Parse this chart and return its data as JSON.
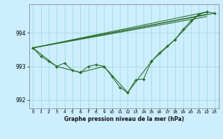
{
  "background_color": "#cceeff",
  "grid_color": "#aadddd",
  "line_color": "#2d6e2d",
  "marker_color": "#2d6e2d",
  "xlabel": "Graphe pression niveau de la mer (hPa)",
  "ylim": [
    991.75,
    994.85
  ],
  "xlim": [
    -0.5,
    23.5
  ],
  "yticks": [
    992,
    993,
    994
  ],
  "xticks": [
    0,
    1,
    2,
    3,
    4,
    5,
    6,
    7,
    8,
    9,
    10,
    11,
    12,
    13,
    14,
    15,
    16,
    17,
    18,
    19,
    20,
    21,
    22,
    23
  ],
  "series": [
    {
      "x": [
        0,
        1,
        2,
        3,
        4,
        5,
        6,
        7,
        8,
        9,
        10,
        11,
        12,
        13,
        14,
        15,
        16,
        17,
        18,
        19,
        20,
        21,
        22,
        23
      ],
      "y": [
        993.55,
        993.3,
        993.15,
        993.0,
        993.1,
        992.88,
        992.82,
        993.0,
        993.05,
        993.0,
        992.7,
        992.38,
        992.22,
        992.6,
        992.62,
        993.15,
        993.4,
        993.6,
        993.8,
        994.1,
        994.35,
        994.55,
        994.62,
        994.58
      ],
      "has_markers": true
    },
    {
      "x": [
        0,
        3,
        6,
        9,
        12,
        15,
        18,
        21,
        22
      ],
      "y": [
        993.55,
        993.0,
        992.82,
        993.0,
        992.22,
        993.15,
        993.8,
        994.55,
        994.62
      ],
      "has_markers": true
    },
    {
      "x": [
        0,
        22
      ],
      "y": [
        993.55,
        994.62
      ],
      "has_markers": false
    },
    {
      "x": [
        0,
        22
      ],
      "y": [
        993.55,
        994.55
      ],
      "has_markers": false
    },
    {
      "x": [
        0,
        22
      ],
      "y": [
        993.55,
        994.48
      ],
      "has_markers": false
    },
    {
      "x": [
        0,
        23
      ],
      "y": [
        993.55,
        994.58
      ],
      "has_markers": false
    }
  ]
}
